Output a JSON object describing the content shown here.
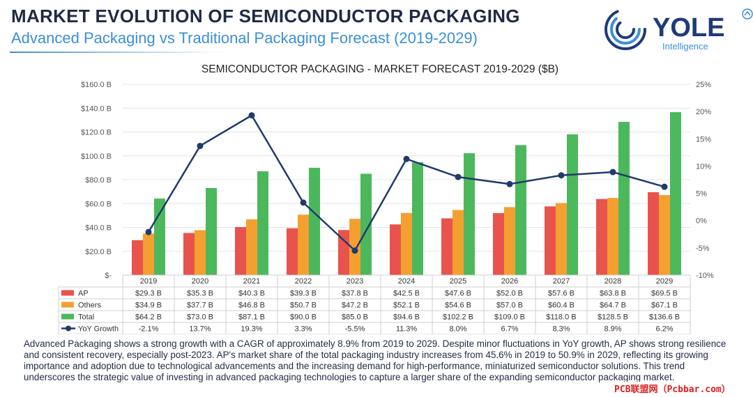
{
  "header": {
    "title": "MARKET EVOLUTION OF SEMICONDUCTOR PACKAGING",
    "subtitle": "Advanced Packaging vs Traditional Packaging Forecast (2019-2029)"
  },
  "logo": {
    "name": "YOLE",
    "tagline": "Intelligence",
    "primary_color": "#1f3a7a",
    "accent_color": "#3a8fd6"
  },
  "colors": {
    "ap": "#e8534d",
    "others": "#f4a031",
    "total": "#4cb85c",
    "yoy": "#1f3a6d",
    "grid": "#e4e4e4",
    "axis_text": "#555555"
  },
  "chart_data": {
    "type": "bar",
    "title": "SEMICONDUCTOR PACKAGING - MARKET FORECAST 2019-2029 ($B)",
    "categories": [
      "2019",
      "2020",
      "2021",
      "2022",
      "2023",
      "2024",
      "2025",
      "2026",
      "2027",
      "2028",
      "2029"
    ],
    "series": [
      {
        "name": "AP",
        "values": [
          29.3,
          35.3,
          40.3,
          39.3,
          37.8,
          42.5,
          47.6,
          52.0,
          57.6,
          63.8,
          69.5
        ],
        "labels": [
          "$29.3 B",
          "$35.3 B",
          "$40.3 B",
          "$39.3 B",
          "$37.8 B",
          "$42.5 B",
          "$47.6 B",
          "$52.0 B",
          "$57.6 B",
          "$63.8 B",
          "$69.5 B"
        ]
      },
      {
        "name": "Others",
        "values": [
          34.9,
          37.7,
          46.8,
          50.7,
          47.2,
          52.1,
          54.6,
          57.0,
          60.4,
          64.7,
          67.1
        ],
        "labels": [
          "$34.9 B",
          "$37.7 B",
          "$46.8 B",
          "$50.7 B",
          "$47.2 B",
          "$52.1 B",
          "$54.6 B",
          "$57.0 B",
          "$60.4 B",
          "$64.7 B",
          "$67.1 B"
        ]
      },
      {
        "name": "Total",
        "values": [
          64.2,
          73.0,
          87.1,
          90.0,
          85.0,
          94.6,
          102.2,
          109.0,
          118.0,
          128.5,
          136.6
        ],
        "labels": [
          "$64.2 B",
          "$73.0 B",
          "$87.1 B",
          "$90.0 B",
          "$85.0 B",
          "$94.6 B",
          "$102.2 B",
          "$109.0 B",
          "$118.0 B",
          "$128.5 B",
          "$136.6 B"
        ]
      }
    ],
    "line_series": {
      "name": "YoY Growth",
      "values": [
        -2.1,
        13.7,
        19.3,
        3.3,
        -5.5,
        11.3,
        8.0,
        6.7,
        8.3,
        8.9,
        6.2
      ],
      "labels": [
        "-2.1%",
        "13.7%",
        "19.3%",
        "3.3%",
        "-5.5%",
        "11.3%",
        "8.0%",
        "6.7%",
        "8.3%",
        "8.9%",
        "6.2%"
      ]
    },
    "ylim": [
      0,
      160
    ],
    "ylim_right": [
      -10,
      25
    ],
    "y_ticks": [
      "$-",
      "$20.0 B",
      "$40.0 B",
      "$60.0 B",
      "$80.0 B",
      "$100.0 B",
      "$120.0 B",
      "$140.0 B",
      "$160.0 B"
    ],
    "y_right_ticks": [
      "-10%",
      "-5%",
      "0%",
      "5%",
      "10%",
      "15%",
      "20%",
      "25%"
    ],
    "grid": true,
    "legend": "data table below chart"
  },
  "description": "Advanced Packaging shows a strong growth with a CAGR of approximately 8.9% from 2019 to 2029. Despite minor fluctuations in YoY growth, AP shows strong resilience and consistent recovery, especially post-2023. AP's market share of the total packaging industry increases from 45.6% in 2019 to 50.9% in 2029, reflecting its growing importance and adoption due to technological advancements and the increasing demand for high-performance, miniaturized semiconductor solutions. This trend underscores the strategic value of investing in advanced packaging technologies to capture a larger share of the expanding semiconductor packaging market.",
  "watermark": "PCB联盟网（Pcbbar.com）"
}
